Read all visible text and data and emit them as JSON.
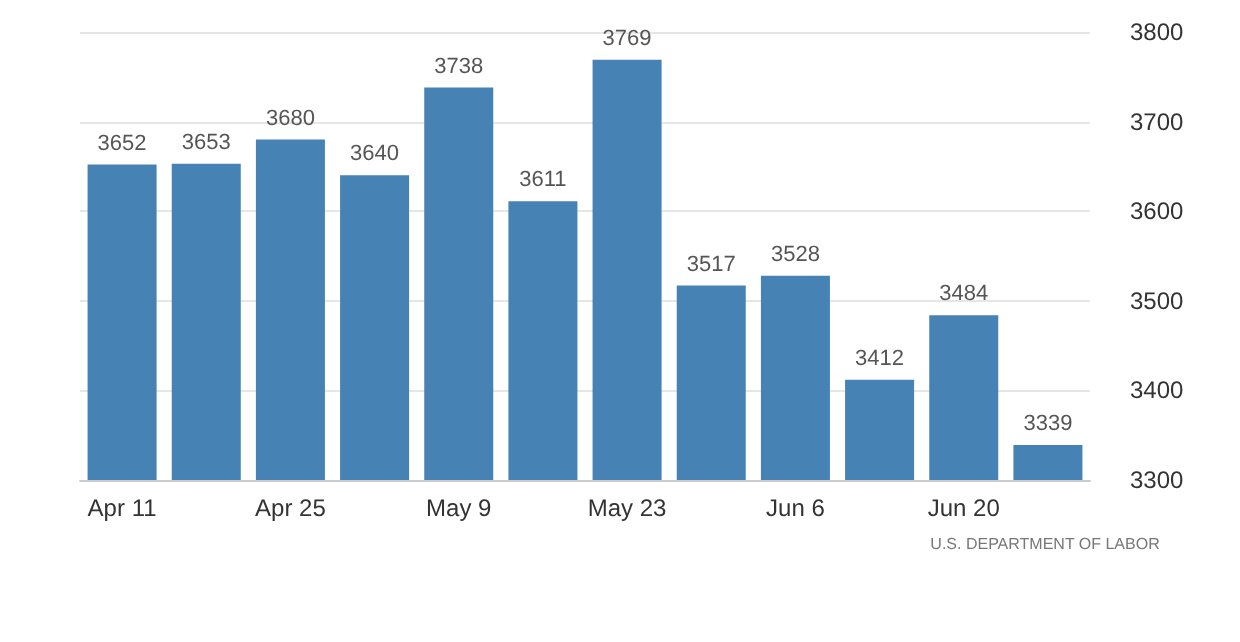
{
  "chart_data": {
    "type": "bar",
    "categories": [
      "Apr 11",
      null,
      "Apr 25",
      null,
      "May 9",
      null,
      "May 23",
      null,
      "Jun 6",
      null,
      "Jun 20",
      null
    ],
    "values": [
      3652,
      3653,
      3680,
      3640,
      3738,
      3611,
      3769,
      3517,
      3528,
      3412,
      3484,
      3339
    ],
    "color": "#4682b4",
    "ylim": [
      3300,
      3800
    ],
    "yticks": [
      3300,
      3400,
      3500,
      3600,
      3700,
      3800
    ],
    "grid": "y",
    "data_labels": true,
    "annotations": [
      "U.S. DEPARTMENT OF LABOR"
    ]
  }
}
